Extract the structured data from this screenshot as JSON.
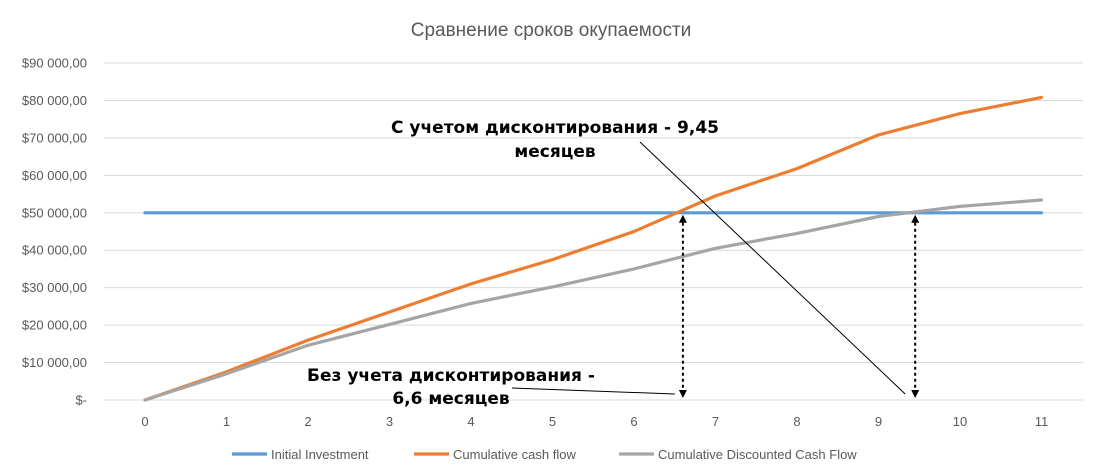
{
  "chart_data": {
    "type": "line",
    "title": "Сравнение сроков окупаемости",
    "xlabel": "",
    "ylabel": "",
    "x": [
      0,
      1,
      2,
      3,
      4,
      5,
      6,
      7,
      8,
      9,
      10,
      11
    ],
    "x_tick_labels": [
      "0",
      "1",
      "2",
      "3",
      "4",
      "5",
      "6",
      "7",
      "8",
      "9",
      "10",
      "11"
    ],
    "ylim": [
      0,
      90000
    ],
    "y_tick_labels": [
      "$-",
      "$10 000,00",
      "$20 000,00",
      "$30 000,00",
      "$40 000,00",
      "$50 000,00",
      "$60 000,00",
      "$70 000,00",
      "$80 000,00",
      "$90 000,00"
    ],
    "grid": true,
    "legend_position": "bottom",
    "series": [
      {
        "name": "Initial Investment",
        "color": "#5B9BD5",
        "values": [
          50000,
          50000,
          50000,
          50000,
          50000,
          50000,
          50000,
          50000,
          50000,
          50000,
          50000,
          50000
        ]
      },
      {
        "name": "Cumulative cash flow",
        "color": "#ED7D31",
        "values": [
          0,
          7500,
          16000,
          23500,
          31000,
          37500,
          45000,
          54500,
          61800,
          70800,
          76500,
          80800
        ]
      },
      {
        "name": "Cumulative Discounted Cash Flow",
        "color": "#A5A5A5",
        "values": [
          0,
          7000,
          14600,
          20200,
          25800,
          30200,
          35000,
          40500,
          44500,
          49000,
          51700,
          53400
        ]
      }
    ],
    "annotations": [
      {
        "text_lines": [
          "С учетом дисконтирования - 9,45",
          "месяцев"
        ],
        "target": {
          "x": 9.45,
          "y": 50000
        }
      },
      {
        "text_lines": [
          "Без учета дисконтирования -",
          "6,6 месяцев"
        ],
        "target": {
          "x": 6.6,
          "y": 50000
        }
      }
    ]
  }
}
